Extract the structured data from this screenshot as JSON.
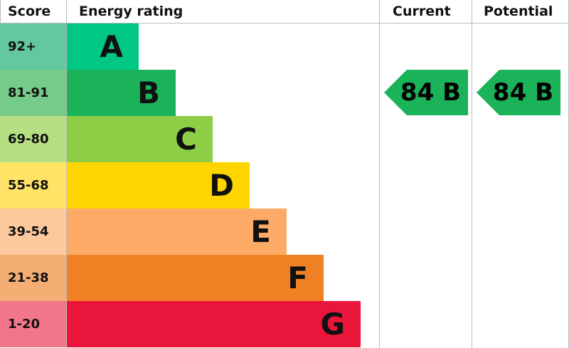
{
  "chart_data": {
    "type": "table",
    "headers": {
      "score": "Score",
      "rating": "Energy rating",
      "current": "Current",
      "potential": "Potential"
    },
    "bands": [
      {
        "letter": "A",
        "range": "92+",
        "color": "#00c781",
        "score_color": "#63c7a0"
      },
      {
        "letter": "B",
        "range": "81-91",
        "color": "#1bb35a",
        "score_color": "#77cb8a"
      },
      {
        "letter": "C",
        "range": "69-80",
        "color": "#8dce46",
        "score_color": "#b6de83"
      },
      {
        "letter": "D",
        "range": "55-68",
        "color": "#ffd500",
        "score_color": "#ffe366"
      },
      {
        "letter": "E",
        "range": "39-54",
        "color": "#fcaa65",
        "score_color": "#fdc89c"
      },
      {
        "letter": "F",
        "range": "21-38",
        "color": "#ef8023",
        "score_color": "#f4ae74"
      },
      {
        "letter": "G",
        "range": "1-20",
        "color": "#e9153b",
        "score_color": "#f2768a"
      }
    ],
    "current": {
      "label": "84 B",
      "score": 84,
      "band": "B",
      "color": "#1bb35a"
    },
    "potential": {
      "label": "84 B",
      "score": 84,
      "band": "B",
      "color": "#1bb35a"
    }
  }
}
